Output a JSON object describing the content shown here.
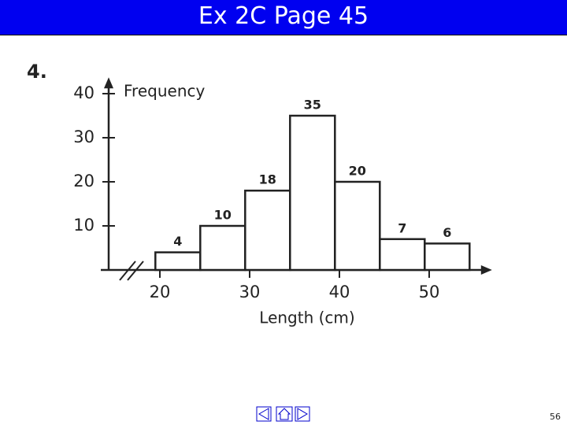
{
  "header": {
    "title": "Ex 2C Page 45"
  },
  "question_number": "4.",
  "chart_data": {
    "type": "histogram",
    "bins": [
      19.5,
      24.5,
      29.5,
      34.5,
      39.5,
      44.5,
      49.5,
      54.5
    ],
    "values": [
      4,
      10,
      18,
      35,
      20,
      7,
      6
    ],
    "color": "#ffffff",
    "x_label": "Length (cm)",
    "y_label": "Frequency",
    "xlim": [
      14,
      57
    ],
    "xticks": [
      20,
      30,
      40,
      50
    ],
    "ylim": [
      0,
      43
    ],
    "yticks": [
      10,
      20,
      30,
      40
    ]
  },
  "footer": {
    "page_number": "56"
  }
}
